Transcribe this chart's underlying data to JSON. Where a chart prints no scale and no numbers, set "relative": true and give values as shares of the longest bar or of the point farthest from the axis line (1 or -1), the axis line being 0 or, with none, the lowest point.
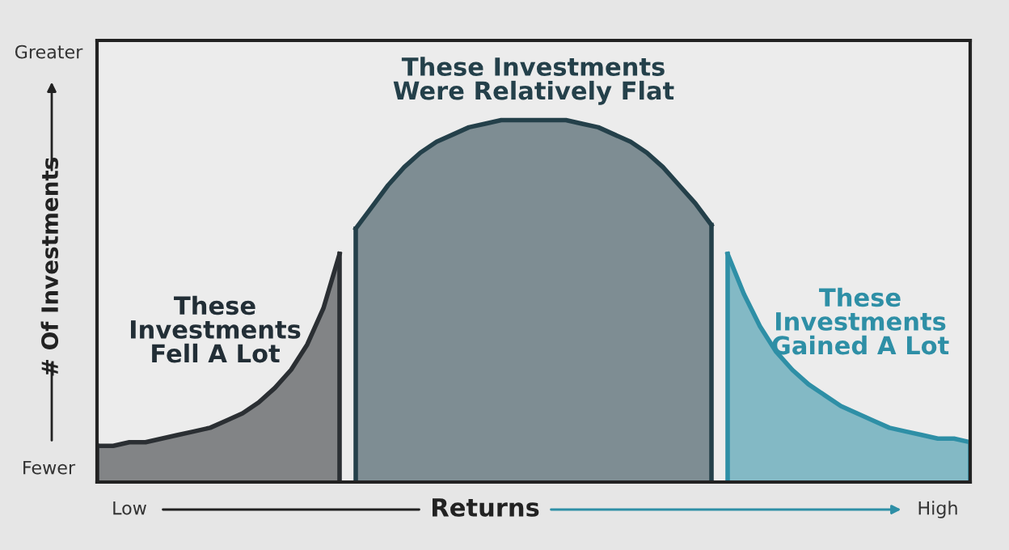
{
  "chart_data": {
    "type": "area",
    "relative": true,
    "xlabel": "Returns",
    "ylabel": "# Of Investments",
    "annotations": [
      "These\nInvestments\nFell A Lot",
      "These Investments\nWere Relatively Flat",
      "These\nInvestments\nGained A Lot",
      "Greater",
      "Fewer",
      "Low",
      "High"
    ],
    "categories": [
      null,
      null,
      null,
      null,
      null,
      null,
      null,
      null,
      null,
      null,
      null,
      null,
      null,
      null,
      null,
      null,
      null,
      null,
      null,
      null,
      null,
      null,
      null,
      null,
      null,
      null,
      null,
      null,
      null,
      null,
      null,
      null,
      null,
      null,
      null,
      null,
      null,
      null,
      null,
      null,
      null,
      null,
      null,
      null,
      null,
      null,
      null,
      null,
      null,
      null,
      null,
      null,
      null,
      null,
      null
    ],
    "series": [
      {
        "color": "#2b2f33",
        "values": [
          0.1,
          0.1,
          0.11,
          0.11,
          0.12,
          0.13,
          0.14,
          0.15,
          0.17,
          0.19,
          0.22,
          0.26,
          0.31,
          0.38,
          0.48,
          0.63,
          null,
          null,
          null,
          null,
          null,
          null,
          null,
          null,
          null,
          null,
          null,
          null,
          null,
          null,
          null,
          null,
          null,
          null,
          null,
          null,
          null,
          null,
          null,
          null,
          null,
          null,
          null,
          null,
          null,
          null,
          null,
          null,
          null,
          null,
          null,
          null,
          null,
          null,
          null
        ]
      },
      {
        "color": "#24404a",
        "values": [
          null,
          null,
          null,
          null,
          null,
          null,
          null,
          null,
          null,
          null,
          null,
          null,
          null,
          null,
          null,
          null,
          0.7,
          0.76,
          0.82,
          0.87,
          0.91,
          0.94,
          0.96,
          0.98,
          0.99,
          1.0,
          1.0,
          1.0,
          1.0,
          1.0,
          0.99,
          0.98,
          0.96,
          0.94,
          0.91,
          0.87,
          0.82,
          0.77,
          0.71,
          null,
          null,
          null,
          null,
          null,
          null,
          null,
          null,
          null,
          null,
          null,
          null,
          null,
          null,
          null,
          null
        ]
      },
      {
        "color": "#2e8fa6",
        "values": [
          null,
          null,
          null,
          null,
          null,
          null,
          null,
          null,
          null,
          null,
          null,
          null,
          null,
          null,
          null,
          null,
          null,
          null,
          null,
          null,
          null,
          null,
          null,
          null,
          null,
          null,
          null,
          null,
          null,
          null,
          null,
          null,
          null,
          null,
          null,
          null,
          null,
          null,
          null,
          0.63,
          0.52,
          0.43,
          0.36,
          0.31,
          0.27,
          0.24,
          0.21,
          0.19,
          0.17,
          0.15,
          0.14,
          0.13,
          0.12,
          0.12,
          0.11
        ]
      }
    ]
  }
}
